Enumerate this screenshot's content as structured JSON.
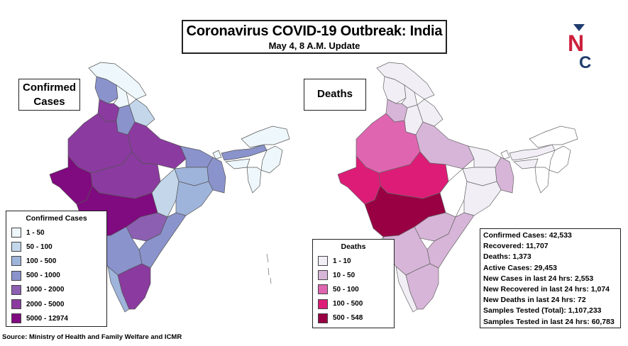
{
  "title": {
    "main": "Coronavirus COVID-19 Outbreak: India",
    "subtitle": "May 4, 8 A.M. Update"
  },
  "logo": {
    "letters": "NC",
    "colors": {
      "n": "#cc1f3c",
      "c": "#1f3c6e",
      "v": "#1f3c6e"
    }
  },
  "panels": {
    "confirmed_label": [
      "Confirmed",
      "Cases"
    ],
    "deaths_label": "Deaths"
  },
  "legends": {
    "confirmed": {
      "title": "Confirmed Cases",
      "items": [
        {
          "label": "1 - 50",
          "color": "#eef7fb"
        },
        {
          "label": "50 - 100",
          "color": "#c3d6ea"
        },
        {
          "label": "100 - 500",
          "color": "#9fb4db"
        },
        {
          "label": "500 - 1000",
          "color": "#8a93cc"
        },
        {
          "label": "1000 - 2000",
          "color": "#8c5fb2"
        },
        {
          "label": "2000 - 5000",
          "color": "#8b3aa0"
        },
        {
          "label": "5000 - 12974",
          "color": "#800a7f"
        }
      ]
    },
    "deaths": {
      "title": "Deaths",
      "items": [
        {
          "label": "1 - 10",
          "color": "#f1eef6"
        },
        {
          "label": "10 - 50",
          "color": "#d7b5d8"
        },
        {
          "label": "50 - 100",
          "color": "#df65b0"
        },
        {
          "label": "100 - 500",
          "color": "#dd1c77"
        },
        {
          "label": "500 - 548",
          "color": "#980043"
        }
      ]
    }
  },
  "stats": [
    "Confirmed Cases: 42,533",
    "Recovered: 11,707",
    "Deaths: 1,373",
    "Active Cases:  29,453",
    "New Cases in last 24 hrs: 2,553",
    "New Recovered in last 24 hrs: 1,074",
    "New Deaths in last 24 hrs: 72",
    "Samples Tested (Total): 1,107,233",
    "Samples Tested in last 24 hrs: 60,783"
  ],
  "source": "Source: Ministry of Health and Family Welfare and ICMR",
  "colors": {
    "border": "#555555",
    "background": "#ffffff"
  }
}
